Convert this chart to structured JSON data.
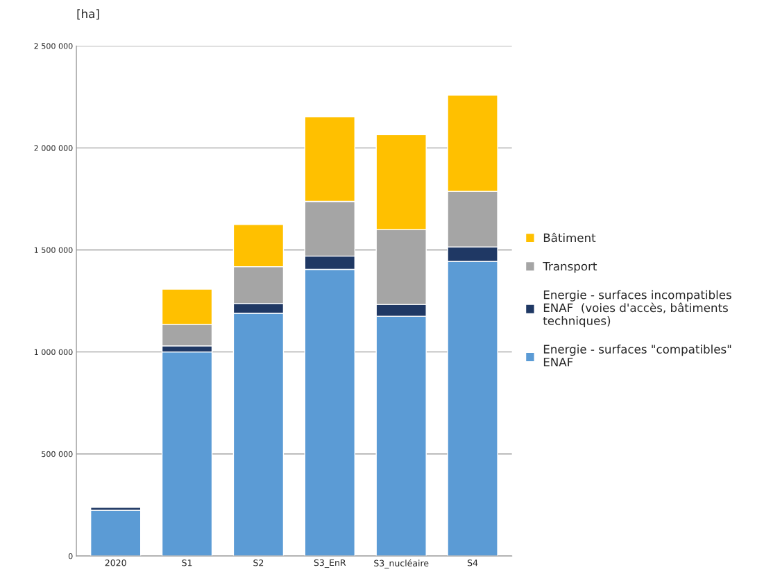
{
  "chart_data": {
    "type": "bar",
    "stacked": true,
    "ylabel": "[ha]",
    "categories": [
      "2020",
      "S1",
      "S2",
      "S3_EnR",
      "S3_nucléaire",
      "S4"
    ],
    "series": [
      {
        "name": "Energie - surfaces \"compatibles\"\nENAF",
        "color": "#5b9bd5",
        "values": [
          224000,
          1000000,
          1190000,
          1405000,
          1175000,
          1444000
        ]
      },
      {
        "name": "Energie - surfaces incompatibles\nENAF  (voies d'accès, bâtiments\ntechniques)",
        "color": "#1f3864",
        "values": [
          14000,
          30000,
          48000,
          65000,
          58000,
          71000
        ]
      },
      {
        "name": "Transport",
        "color": "#a5a5a5",
        "values": [
          null,
          105000,
          180000,
          268000,
          367000,
          272000
        ]
      },
      {
        "name": "Bâtiment",
        "color": "#ffc000",
        "values": [
          null,
          173000,
          207000,
          414000,
          465000,
          472000
        ]
      }
    ],
    "ylim": [
      0,
      2500000
    ],
    "yticks": [
      0,
      {
        "value": 500000,
        "label": "500 000"
      },
      {
        "value": 1000000,
        "label": "1 000 000"
      },
      {
        "value": 1500000,
        "label": "1 500 000"
      },
      {
        "value": 2000000,
        "label": "2 000 000"
      },
      {
        "value": 2500000,
        "label": "2 500 000"
      }
    ],
    "grid": "y",
    "legend": "right"
  }
}
